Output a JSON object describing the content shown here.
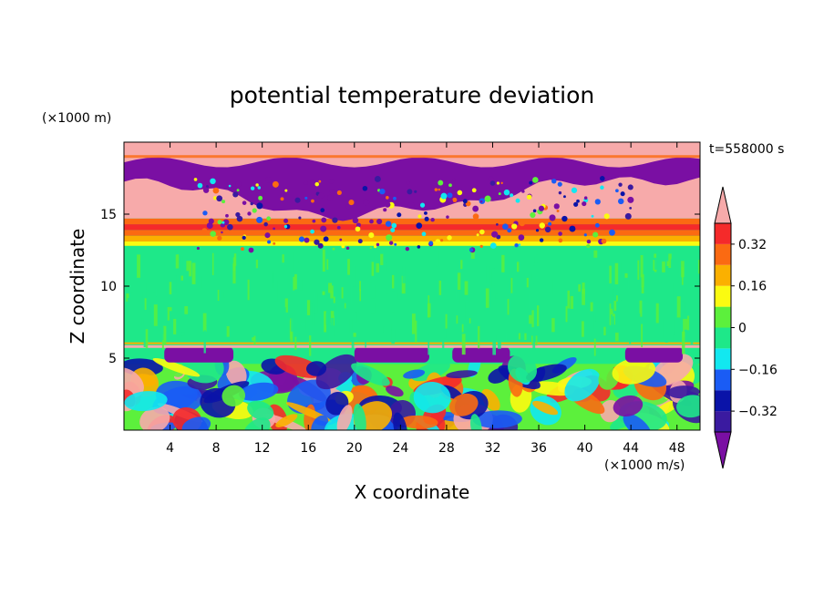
{
  "chart_data": {
    "type": "heatmap",
    "title": "potential temperature deviation",
    "xlabel": "X coordinate",
    "ylabel": "Z coordinate",
    "x_unit": "(×1000 m/s)",
    "y_unit": "(×1000 m)",
    "time_label": "t=558000 s",
    "xlim": [
      0,
      50
    ],
    "ylim": [
      0,
      20
    ],
    "xticks": [
      4,
      8,
      12,
      16,
      20,
      24,
      28,
      32,
      36,
      40,
      44,
      48
    ],
    "yticks": [
      5,
      10,
      15
    ],
    "colorbar": {
      "levels": [
        -0.4,
        -0.32,
        -0.24,
        -0.16,
        -0.08,
        0,
        0.08,
        0.16,
        0.24,
        0.32,
        0.4
      ],
      "tick_labels": [
        "0.32",
        "0.16",
        "0",
        "−0.16",
        "−0.32"
      ],
      "tick_values": [
        0.32,
        0.16,
        0,
        -0.16,
        -0.32
      ],
      "colors": [
        "#7a0fa3",
        "#3a1aa0",
        "#0a13a8",
        "#1a5cf5",
        "#12e8f0",
        "#1ee889",
        "#5cf03c",
        "#fbfb11",
        "#fbb000",
        "#fb6a12",
        "#f52a2a",
        "#f7aaaa"
      ],
      "extend": "both"
    },
    "bands": [
      {
        "z_range": [
          0,
          4.6
        ],
        "description_color": "mixed"
      },
      {
        "z_range": [
          6,
          12.8
        ],
        "dominant_value": 0
      },
      {
        "z_range": [
          13,
          14.4
        ],
        "dominant_value": 0.32
      },
      {
        "z_range": [
          16.5,
          18.8
        ],
        "dominant_value": -0.4
      }
    ]
  }
}
